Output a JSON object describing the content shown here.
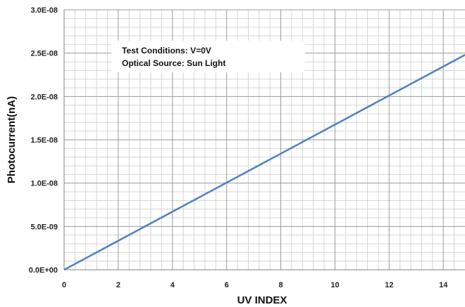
{
  "chart_data": {
    "type": "line",
    "title": "",
    "xlabel": "UV INDEX",
    "ylabel": "Photocurrent(nA)",
    "xlim": [
      0,
      14.8
    ],
    "ylim": [
      0,
      3e-08
    ],
    "x_ticks": [
      0,
      2,
      4,
      6,
      8,
      10,
      12,
      14
    ],
    "x_tick_labels": [
      "0",
      "2",
      "4",
      "6",
      "8",
      "10",
      "12",
      "14"
    ],
    "y_ticks": [
      0,
      5e-09,
      1e-08,
      1.5e-08,
      2e-08,
      2.5e-08,
      3e-08
    ],
    "y_tick_labels": [
      "0.0E+00",
      "5.0E-09",
      "1.0E-08",
      "1.5E-08",
      "2.0E-08",
      "2.5E-08",
      "3.0E-08"
    ],
    "grid": true,
    "series": [
      {
        "color": "#4F81BD",
        "x": [
          0,
          14.8
        ],
        "y": [
          0,
          2.48e-08
        ]
      }
    ],
    "annotations": [
      "Test Conditions: V=0V",
      "Optical Source:  Sun Light"
    ]
  }
}
